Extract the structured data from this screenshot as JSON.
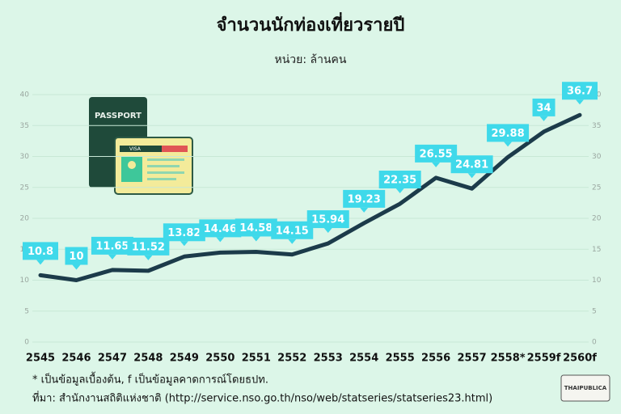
{
  "chart_data": {
    "type": "line",
    "title": "จำนวนนักท่องเที่ยวรายปี",
    "subtitle": "หน่วย: ล้านคน",
    "categories": [
      "2545",
      "2546",
      "2547",
      "2548",
      "2549",
      "2550",
      "2551",
      "2552",
      "2553",
      "2554",
      "2555",
      "2556",
      "2557",
      "2558*",
      "2559f",
      "2560f"
    ],
    "values": [
      10.8,
      10,
      11.65,
      11.52,
      13.82,
      14.46,
      14.58,
      14.15,
      15.94,
      19.23,
      22.35,
      26.55,
      24.81,
      29.88,
      34,
      36.7
    ],
    "color": "#1c3b4a",
    "label_color": "#3fd9ea",
    "ylim": [
      0,
      40
    ],
    "yticks": [
      0,
      5,
      10,
      15,
      20,
      25,
      30,
      35,
      40
    ],
    "y2lim": [
      0,
      40
    ],
    "y2ticks": [
      0,
      5,
      10,
      15,
      20,
      25,
      30,
      35,
      40
    ],
    "grid": true,
    "annotations": [
      "PASSPORT",
      "VISA"
    ],
    "note": "* เป็นข้อมูลเบื้องต้น, f เป็นข้อมูลคาดการณ์โดยธปท.",
    "source": "ที่มา: สำนักงานสถิติแห่งชาติ (http://service.nso.go.th/nso/web/statseries/statseries23.html)",
    "logo": "THAIPUBLICA"
  }
}
